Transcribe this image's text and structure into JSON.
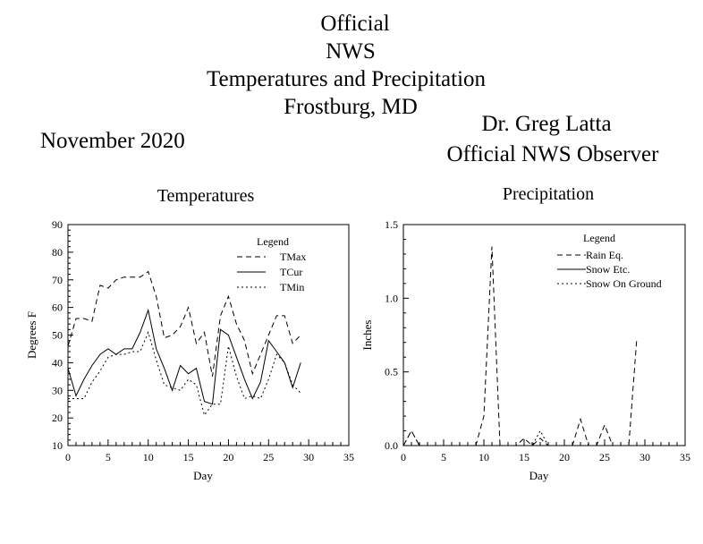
{
  "header": {
    "title_lines": [
      "Official",
      "NWS",
      "Temperatures and Precipitation",
      "Frostburg, MD"
    ],
    "month": "November 2020",
    "observer_name": "Dr. Greg Latta",
    "observer_role": "Official NWS Observer"
  },
  "chart_data": [
    {
      "type": "line",
      "title": "Temperatures",
      "xlabel": "Day",
      "ylabel": "Degrees F",
      "xlim": [
        0,
        35
      ],
      "ylim": [
        10,
        90
      ],
      "x_ticks": [
        0,
        5,
        10,
        15,
        20,
        25,
        30,
        35
      ],
      "y_ticks": [
        10,
        20,
        30,
        40,
        50,
        60,
        70,
        80,
        90
      ],
      "legend_title": "Legend",
      "legend_position": "top-right",
      "series": [
        {
          "name": "TMax",
          "style": "dashed",
          "x": [
            0,
            1,
            2,
            3,
            4,
            5,
            6,
            7,
            8,
            9,
            10,
            11,
            12,
            13,
            14,
            15,
            16,
            17,
            18,
            19,
            20,
            21,
            22,
            23,
            24,
            25,
            26,
            27,
            28,
            29
          ],
          "y": [
            46,
            56,
            56,
            55,
            68,
            67,
            70,
            71,
            71,
            71,
            73,
            64,
            49,
            50,
            53,
            60,
            47,
            51,
            35,
            57,
            64,
            54,
            48,
            36,
            43,
            50,
            57,
            57,
            47,
            50
          ]
        },
        {
          "name": "TCur",
          "style": "solid",
          "x": [
            0,
            1,
            2,
            3,
            4,
            5,
            6,
            7,
            8,
            9,
            10,
            11,
            12,
            13,
            14,
            15,
            16,
            17,
            18,
            19,
            20,
            21,
            22,
            23,
            24,
            25,
            26,
            27,
            28,
            29
          ],
          "y": [
            38,
            28,
            34,
            39,
            43,
            45,
            43,
            45,
            45,
            51,
            59,
            45,
            38,
            30,
            39,
            36,
            38,
            26,
            25,
            52,
            50,
            42,
            34,
            27,
            33,
            48,
            44,
            40,
            31,
            40
          ]
        },
        {
          "name": "TMin",
          "style": "dotted",
          "x": [
            0,
            1,
            2,
            3,
            4,
            5,
            6,
            7,
            8,
            9,
            10,
            11,
            12,
            13,
            14,
            15,
            16,
            17,
            18,
            19,
            20,
            21,
            22,
            23,
            24,
            25,
            26,
            27,
            28,
            29
          ],
          "y": [
            27,
            27,
            27,
            33,
            37,
            42,
            43,
            43,
            44,
            44,
            51,
            41,
            32,
            31,
            30,
            34,
            32,
            21,
            25,
            25,
            46,
            35,
            27,
            28,
            27,
            34,
            43,
            40,
            32,
            29
          ]
        }
      ]
    },
    {
      "type": "line",
      "title": "Precipitation",
      "xlabel": "Day",
      "ylabel": "Inches",
      "xlim": [
        0,
        35
      ],
      "ylim": [
        0,
        1.5
      ],
      "x_ticks": [
        0,
        5,
        10,
        15,
        20,
        25,
        30,
        35
      ],
      "y_ticks": [
        0.0,
        0.5,
        1.0,
        1.5
      ],
      "y_tick_labels": [
        "0.0",
        "0.5",
        "1.0",
        "1.5"
      ],
      "legend_title": "Legend",
      "legend_position": "top-right",
      "series": [
        {
          "name": "Rain Eq.",
          "style": "dashed",
          "x": [
            0,
            1,
            2,
            3,
            4,
            5,
            6,
            7,
            8,
            9,
            10,
            11,
            12,
            13,
            14,
            15,
            16,
            17,
            18,
            19,
            20,
            21,
            22,
            23,
            24,
            25,
            26,
            27,
            28,
            29
          ],
          "y": [
            0,
            0.1,
            0,
            0,
            0,
            0,
            0,
            0,
            0,
            0,
            0.2,
            1.35,
            0,
            0,
            0,
            0.05,
            0,
            0.05,
            0,
            0,
            0,
            0,
            0.18,
            0,
            0,
            0.14,
            0,
            0,
            0,
            0.73
          ]
        },
        {
          "name": "Snow Etc.",
          "style": "solid",
          "x": [
            0,
            1,
            2,
            3,
            4,
            5,
            6,
            7,
            8,
            9,
            10,
            11,
            12,
            13,
            14,
            15,
            16,
            17,
            18,
            19,
            20,
            21,
            22,
            23,
            24,
            25,
            26,
            27,
            28,
            29
          ],
          "y": [
            0,
            0,
            0,
            0,
            0,
            0,
            0,
            0,
            0,
            0,
            0,
            0,
            0,
            0,
            0,
            0,
            0,
            0,
            0,
            0,
            0,
            0,
            0,
            0,
            0,
            0,
            0,
            0,
            0,
            0
          ]
        },
        {
          "name": "Snow On Ground",
          "style": "dotted",
          "x": [
            0,
            1,
            2,
            3,
            4,
            5,
            6,
            7,
            8,
            9,
            10,
            11,
            12,
            13,
            14,
            15,
            16,
            17,
            18,
            19,
            20,
            21,
            22,
            23,
            24,
            25,
            26,
            27,
            28,
            29
          ],
          "y": [
            0,
            0.1,
            0,
            0,
            0,
            0,
            0,
            0,
            0,
            0,
            0,
            0,
            0,
            0,
            0,
            0,
            0,
            0.1,
            0,
            0,
            0,
            0,
            0,
            0,
            0,
            0,
            0,
            0,
            0,
            0
          ]
        }
      ]
    }
  ]
}
